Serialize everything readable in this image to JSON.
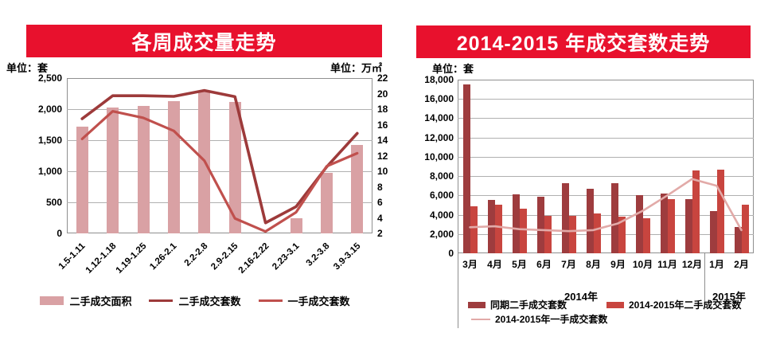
{
  "charts": {
    "left": {
      "title": "各周成交量走势",
      "unit_left": "单位：套",
      "unit_right": "单位：万㎡",
      "y_ticks_left": [
        "2,500",
        "2,000",
        "1,500",
        "1,000",
        "500",
        "0"
      ],
      "y_ticks_right": [
        "22",
        "20",
        "18",
        "16",
        "14",
        "12",
        "10",
        "8",
        "6",
        "4",
        "2"
      ],
      "legend": [
        "二手成交面积",
        "二手成交套数",
        "一手成交套数"
      ]
    },
    "right": {
      "title": "2014-2015 年成交套数走势",
      "unit_left": "单位：套",
      "y_ticks": [
        "18,000",
        "16,000",
        "14,000",
        "12,000",
        "10,000",
        "8,000",
        "6,000",
        "4,000",
        "2,000",
        "0"
      ],
      "x_year_labels": [
        "2014年",
        "2015年"
      ],
      "legend": [
        "同期二手成交套数",
        "2014-2015年二手成交套数",
        "2014-2015年一手成交套数"
      ]
    }
  },
  "chart_data": [
    {
      "type": "bar",
      "title": "各周成交量走势",
      "categories": [
        "1.5-1.11",
        "1.12-1.18",
        "1.19-1.25",
        "1.26-2.1",
        "2.2-2.8",
        "2.9-2.15",
        "2.16-2.22",
        "2.23-3.1",
        "3.2-3.8",
        "3.9-3.15"
      ],
      "series": [
        {
          "name": "二手成交面积",
          "type": "bar",
          "axis": "right",
          "unit": "万㎡",
          "values": [
            15.7,
            18.2,
            18.4,
            19.0,
            20.4,
            18.9,
            2.0,
            3.9,
            9.8,
            13.4
          ]
        },
        {
          "name": "二手成交套数",
          "type": "line",
          "axis": "left",
          "unit": "套",
          "values": [
            1845,
            2215,
            2215,
            2205,
            2300,
            2200,
            170,
            430,
            1070,
            1610
          ]
        },
        {
          "name": "一手成交套数",
          "type": "line",
          "axis": "left",
          "unit": "套",
          "values": [
            1520,
            1965,
            1860,
            1650,
            1170,
            240,
            30,
            340,
            1080,
            1290
          ]
        }
      ],
      "left_axis": {
        "label": "单位：套",
        "range": [
          0,
          2500
        ],
        "step": 500
      },
      "right_axis": {
        "label": "单位：万㎡",
        "range": [
          2,
          22
        ],
        "step": 2
      },
      "grid": true,
      "legend_position": "bottom"
    },
    {
      "type": "bar",
      "title": "2014-2015 年成交套数走势",
      "categories": [
        "3月",
        "4月",
        "5月",
        "6月",
        "7月",
        "8月",
        "9月",
        "10月",
        "11月",
        "12月",
        "1月",
        "2月"
      ],
      "category_groups": [
        {
          "label": "2014年",
          "span": 10
        },
        {
          "label": "2015年",
          "span": 2
        }
      ],
      "series": [
        {
          "name": "同期二手成交套数",
          "type": "bar",
          "values": [
            17500,
            5500,
            6100,
            5900,
            7300,
            6700,
            7300,
            6000,
            6200,
            5600,
            4400,
            2700
          ]
        },
        {
          "name": "2014-2015年二手成交套数",
          "type": "bar",
          "values": [
            4900,
            5000,
            4600,
            3900,
            3900,
            4100,
            3800,
            3600,
            5600,
            8600,
            8700,
            5000
          ]
        },
        {
          "name": "2014-2015年一手成交套数",
          "type": "line",
          "values": [
            2700,
            2800,
            2500,
            2400,
            2300,
            2400,
            3100,
            4400,
            6000,
            7700,
            7000,
            2400
          ]
        }
      ],
      "y_axis": {
        "label": "单位：套",
        "range": [
          0,
          18000
        ],
        "step": 2000
      },
      "grid": true,
      "legend_position": "bottom"
    }
  ],
  "colors": {
    "banner_red": "#e8112d",
    "pink_bar": "#d9a1a4",
    "dark_red_line": "#9d3a3a",
    "mid_red_line": "#c0504d",
    "dark_red_bar": "#9e3c3e",
    "red_bar": "#c8453f",
    "pink_line": "#e2aaa8",
    "gridline": "#b0b0b0",
    "axis_border": "#8f8f8f"
  }
}
